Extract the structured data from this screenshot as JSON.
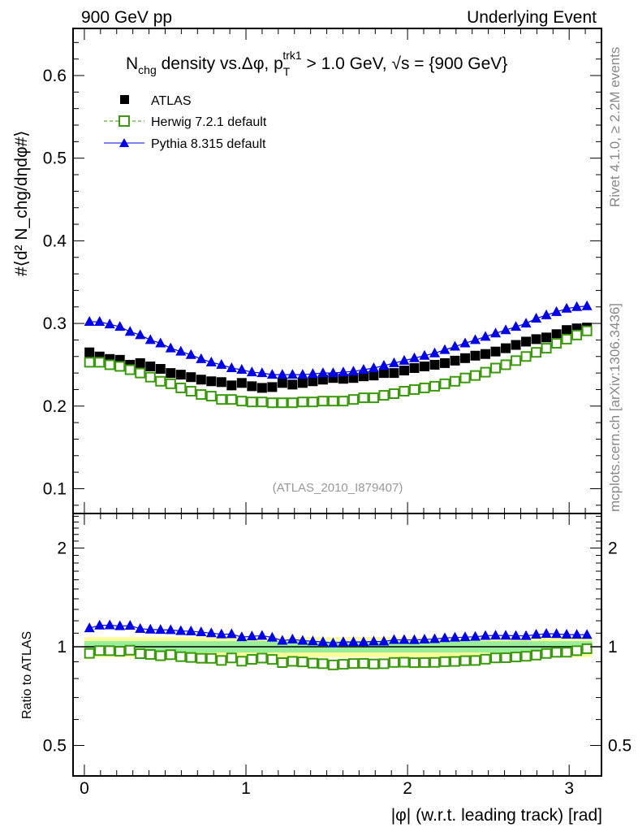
{
  "header": {
    "left": "900 GeV pp",
    "right": "Underlying Event"
  },
  "side": {
    "rivet": "Rivet 4.1.0, ≥ 2.2M events",
    "mcplots": "mcplots.cern.ch [arXiv:1306.3436]"
  },
  "title": {
    "a": "N",
    "a_sub": "chg",
    "b": " density vs.Δφ, p",
    "b_sub": "T",
    "b_sup": "trk1",
    "c": " > 1.0 GeV, ",
    "d": "√s = {900 GeV}"
  },
  "watermark": "(ATLAS_2010_I879407)",
  "colors": {
    "atlas": "#000000",
    "herwig": "#3a9a0a",
    "pythia": "#0000ee",
    "band_yellow": "#ffff99",
    "band_green": "#99ee99"
  },
  "chart_data": {
    "type": "scatter",
    "title": "N_chg density vs. Δφ, p_T^trk1 > 1.0 GeV, √s = {900 GeV}",
    "xlabel": "|φ| (w.r.t. leading track) [rad]",
    "ylabel": "#⟨d² N_chg/dηdφ#⟩",
    "ratio_ylabel": "Ratio to ATLAS",
    "xlim": [
      -0.07,
      3.2
    ],
    "ylim": [
      0.07,
      0.657
    ],
    "ratio_ylim": [
      0.31,
      2.55
    ],
    "ratio_scale": "log",
    "xticks": [
      "0",
      "1",
      "2",
      "3"
    ],
    "yticks": [
      "0.1",
      "0.2",
      "0.3",
      "0.4",
      "0.5",
      "0.6"
    ],
    "ratio_yticks": [
      "0.5",
      "1",
      "2"
    ],
    "legend_position": "top-left",
    "band_yellow_frac": 0.07,
    "band_green_frac": 0.04,
    "nbins": 50,
    "series": [
      {
        "name": "ATLAS",
        "marker": "filled-square",
        "values": [
          0.265,
          0.26,
          0.257,
          0.256,
          0.25,
          0.252,
          0.248,
          0.245,
          0.24,
          0.238,
          0.235,
          0.232,
          0.23,
          0.229,
          0.225,
          0.228,
          0.224,
          0.222,
          0.223,
          0.228,
          0.226,
          0.228,
          0.23,
          0.232,
          0.234,
          0.233,
          0.234,
          0.236,
          0.237,
          0.24,
          0.24,
          0.243,
          0.246,
          0.248,
          0.25,
          0.252,
          0.255,
          0.258,
          0.261,
          0.263,
          0.266,
          0.27,
          0.274,
          0.278,
          0.281,
          0.283,
          0.287,
          0.292,
          0.294,
          0.295
        ]
      },
      {
        "name": "Herwig 7.2.1 default",
        "marker": "open-square",
        "values": [
          0.253,
          0.253,
          0.25,
          0.248,
          0.244,
          0.24,
          0.235,
          0.23,
          0.227,
          0.222,
          0.218,
          0.214,
          0.212,
          0.208,
          0.208,
          0.206,
          0.205,
          0.205,
          0.204,
          0.204,
          0.204,
          0.205,
          0.205,
          0.206,
          0.206,
          0.206,
          0.208,
          0.21,
          0.21,
          0.213,
          0.215,
          0.218,
          0.22,
          0.222,
          0.224,
          0.227,
          0.23,
          0.234,
          0.237,
          0.241,
          0.246,
          0.25,
          0.255,
          0.26,
          0.265,
          0.27,
          0.276,
          0.281,
          0.286,
          0.291
        ]
      },
      {
        "name": "Pythia 8.315 default",
        "marker": "filled-triangle",
        "values": [
          0.302,
          0.302,
          0.299,
          0.296,
          0.29,
          0.286,
          0.28,
          0.276,
          0.27,
          0.266,
          0.262,
          0.257,
          0.253,
          0.25,
          0.246,
          0.244,
          0.241,
          0.24,
          0.238,
          0.238,
          0.238,
          0.238,
          0.239,
          0.24,
          0.24,
          0.241,
          0.242,
          0.244,
          0.246,
          0.249,
          0.252,
          0.255,
          0.258,
          0.261,
          0.264,
          0.268,
          0.272,
          0.276,
          0.28,
          0.284,
          0.288,
          0.292,
          0.296,
          0.3,
          0.306,
          0.31,
          0.314,
          0.318,
          0.32,
          0.321
        ]
      }
    ]
  }
}
